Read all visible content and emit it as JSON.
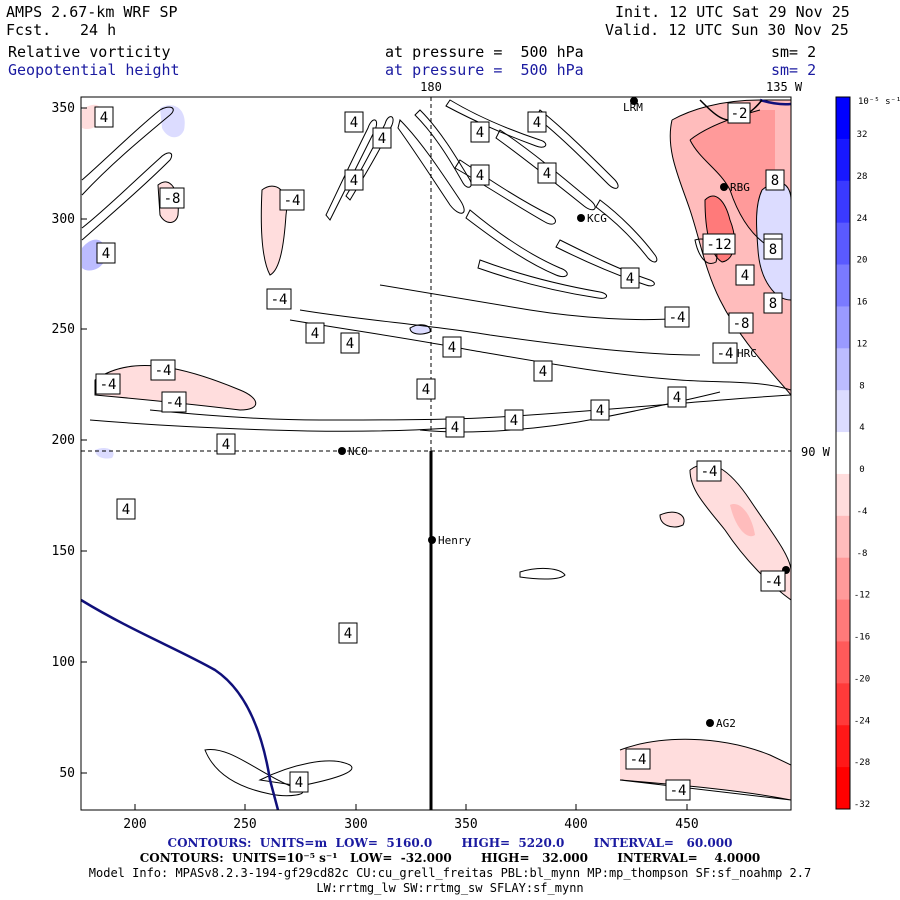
{
  "header": {
    "model": "AMPS 2.67-km WRF SP",
    "fcst_label": "Fcst.",
    "fcst_value": "24 h",
    "init": "Init. 12 UTC Sat 29 Nov 25",
    "valid": "Valid. 12 UTC Sun 30 Nov 25",
    "field1": "Relative vorticity",
    "field1_pressure": "at pressure =  500 hPa",
    "field1_sm": "sm= 2",
    "field2": "Geopotential height",
    "field2_pressure": "at pressure =  500 hPa",
    "field2_sm": "sm= 2"
  },
  "map": {
    "x_ticks": [
      "200",
      "250",
      "300",
      "350",
      "400",
      "450"
    ],
    "y_ticks": [
      "350",
      "300",
      "250",
      "200",
      "150",
      "100",
      "50"
    ],
    "lon_180": "180",
    "lon_135w": "135 W",
    "lat_90w": "90 W",
    "stations": [
      {
        "name": "NCO"
      },
      {
        "name": "Henry"
      },
      {
        "name": "KCG"
      },
      {
        "name": "RBG"
      },
      {
        "name": "HRC"
      },
      {
        "name": "AG2"
      },
      {
        "name": "LRM"
      }
    ],
    "contour_labels": [
      "4",
      "4",
      "4",
      "4",
      "4",
      "4",
      "4",
      "4",
      "4",
      "4",
      "4",
      "4",
      "4",
      "4",
      "4",
      "4",
      "4",
      "4",
      "4",
      "4",
      "4",
      "4",
      "4",
      "4",
      "4",
      "-8",
      "-4",
      "-4",
      "-4",
      "-4",
      "-4",
      "-4",
      "-4",
      "-4",
      "-4",
      "-4",
      "-4",
      "-4",
      "-8",
      "-12",
      "-2",
      "8",
      "8",
      "8"
    ]
  },
  "colorbar": {
    "unit": "10⁻⁵ s⁻¹",
    "labels": [
      "32",
      "28",
      "24",
      "20",
      "16",
      "12",
      "8",
      "4",
      "0",
      "-4",
      "-8",
      "-12",
      "-16",
      "-20",
      "-24",
      "-28",
      "-32"
    ],
    "colors": [
      "#0000ff",
      "#1818ff",
      "#3a3aff",
      "#5a5aff",
      "#7a7aff",
      "#9a9aff",
      "#bcbcff",
      "#dcdcff",
      "#ffffff",
      "#ffdddd",
      "#ffbcbc",
      "#ff9a9a",
      "#ff7a7a",
      "#ff5a5a",
      "#ff3a3a",
      "#ff1818",
      "#ff0000"
    ]
  },
  "footer": {
    "contours1": "CONTOURS:  UNITS=m  LOW=  5160.0       HIGH=  5220.0       INTERVAL=   60.000",
    "contours2": "CONTOURS:  UNITS=10⁻⁵ s⁻¹   LOW=  -32.000       HIGH=   32.000       INTERVAL=    4.0000",
    "model_info": "Model Info: MPASv8.2.3-194-gf29cd82c CU:cu_grell_freitas PBL:bl_mynn MP:mp_thompson SF:sf_noahmp 2.7",
    "model_info2": "LW:rrtmg_lw SW:rrtmg_sw SFLAY:sf_mynn"
  }
}
